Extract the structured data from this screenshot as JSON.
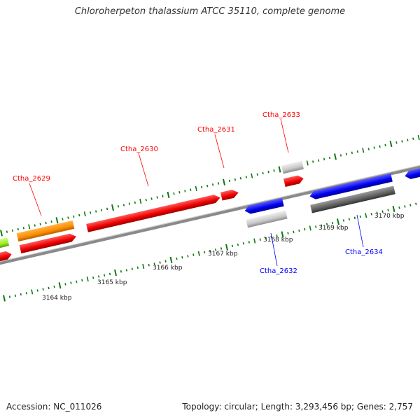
{
  "title": "Chloroherpeton thalassium ATCC 35110, complete genome",
  "footer": {
    "accession": "Accession: NC_011026",
    "summary": "Topology: circular; Length: 3,293,456 bp; Genes: 2,757"
  },
  "colors": {
    "forward_cds": "#ff0000",
    "reverse_cds": "#0000ff",
    "rna": "#ff8c00",
    "other_feature": "#c8c8c8",
    "other_feature_dark": "#606060",
    "partial_feature": "#99ee22",
    "backbone": "#8a8a8a",
    "ticks": "#117711"
  },
  "map": {
    "kbp_labels": [
      {
        "text": "3164 kbp",
        "kbp": 3164
      },
      {
        "text": "3165 kbp",
        "kbp": 3165
      },
      {
        "text": "3166 kbp",
        "kbp": 3166
      },
      {
        "text": "3167 kbp",
        "kbp": 3167
      },
      {
        "text": "3168 kbp",
        "kbp": 3168
      },
      {
        "text": "3169 kbp",
        "kbp": 3169
      },
      {
        "text": "3170 kbp",
        "kbp": 3170
      }
    ],
    "gene_labels": [
      {
        "name": "Ctha_2629",
        "strand": "forward"
      },
      {
        "name": "Ctha_2630",
        "strand": "forward"
      },
      {
        "name": "Ctha_2631",
        "strand": "forward"
      },
      {
        "name": "Ctha_2633",
        "strand": "forward"
      },
      {
        "name": "Ctha_2632",
        "strand": "reverse"
      },
      {
        "name": "Ctha_2634",
        "strand": "reverse"
      }
    ]
  }
}
